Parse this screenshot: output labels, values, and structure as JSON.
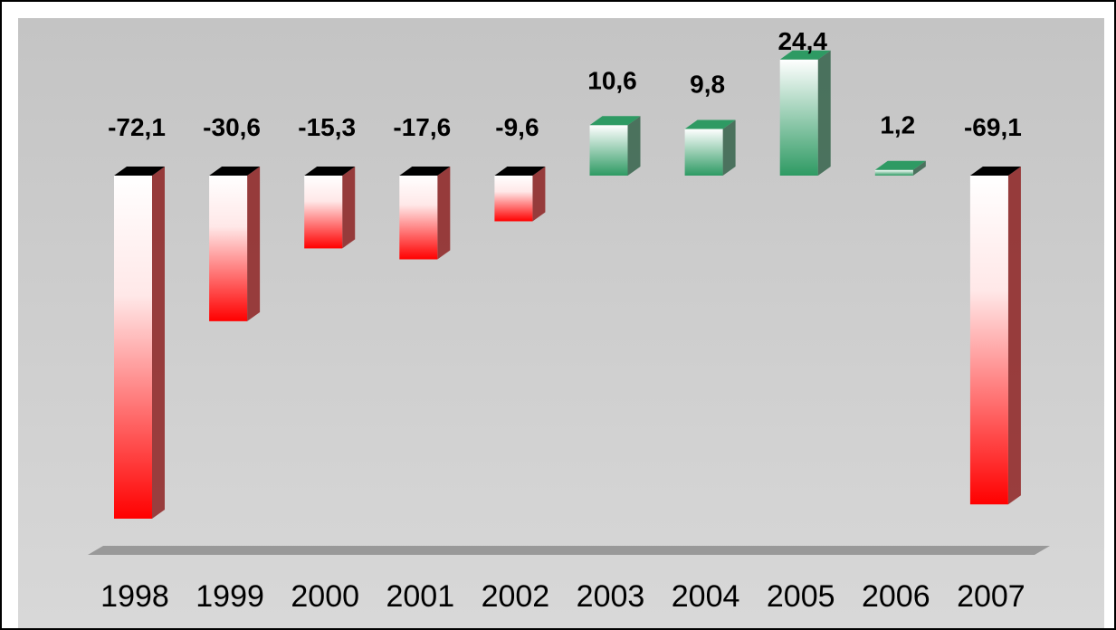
{
  "chart_data": {
    "type": "bar3d",
    "categories": [
      "1998",
      "1999",
      "2000",
      "2001",
      "2002",
      "2003",
      "2004",
      "2005",
      "2006",
      "2007"
    ],
    "values": [
      -72.1,
      -30.6,
      -15.3,
      -17.6,
      -9.6,
      10.6,
      9.8,
      24.4,
      1.2,
      -69.1
    ],
    "value_labels": [
      "-72,1",
      "-30,6",
      "-15,3",
      "-17,6",
      "-9,6",
      "10,6",
      "9,8",
      "24,4",
      "1,2",
      "-69,1"
    ],
    "positive_color": "#2e9a63",
    "negative_color": "#ff0000"
  }
}
